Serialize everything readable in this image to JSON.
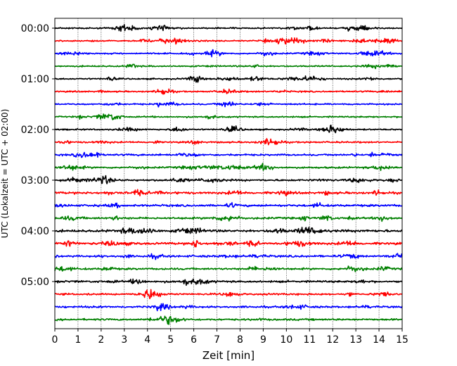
{
  "chart_data": {
    "type": "line",
    "title": "",
    "xlabel": "Zeit  [min]",
    "ylabel": "UTC (Lokalzeit = UTC + 02:00)",
    "xlim": [
      0,
      15
    ],
    "xticks": [
      "0",
      "1",
      "2",
      "3",
      "4",
      "5",
      "6",
      "7",
      "8",
      "9",
      "10",
      "11",
      "12",
      "13",
      "14",
      "15"
    ],
    "yticks": [
      "00:00",
      "01:00",
      "02:00",
      "03:00",
      "04:00",
      "05:00"
    ],
    "grid_x": true,
    "trace_count": 24,
    "traces_per_hour": 4,
    "color_cycle": [
      "#000000",
      "#ff0000",
      "#0000ff",
      "#008000"
    ],
    "trace_amplitude": [
      1,
      1,
      1,
      1,
      1,
      1,
      1,
      1,
      1,
      1.1,
      1.2,
      1.2,
      1.3,
      1.5,
      1.5,
      1.4,
      1.6,
      1.6,
      1.4,
      1.3,
      1.4,
      1.2,
      1.3,
      1.3
    ]
  }
}
